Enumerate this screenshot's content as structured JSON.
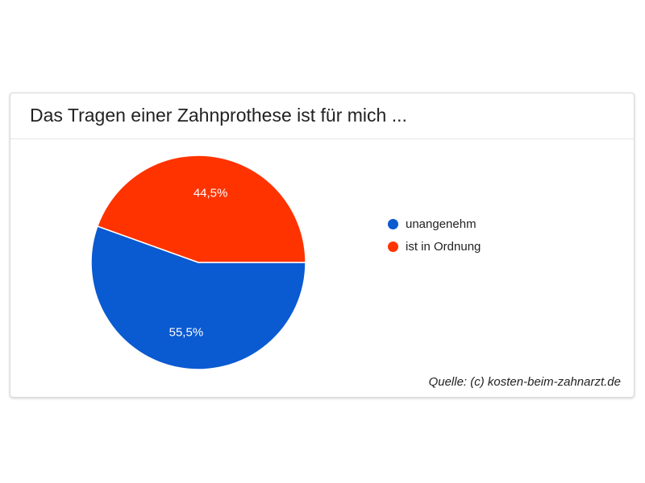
{
  "chart_data": {
    "type": "pie",
    "title": "Das Tragen einer Zahnprothese ist für mich ...",
    "slices": [
      {
        "label": "unangenehm",
        "value": 55.5,
        "value_label": "55,5%",
        "color": "#0a5ad1"
      },
      {
        "label": "ist in Ordnung",
        "value": 44.5,
        "value_label": "44,5%",
        "color": "#ff3300"
      }
    ],
    "legend_position": "right",
    "source": "Quelle: (c) kosten-beim-zahnarzt.de"
  }
}
